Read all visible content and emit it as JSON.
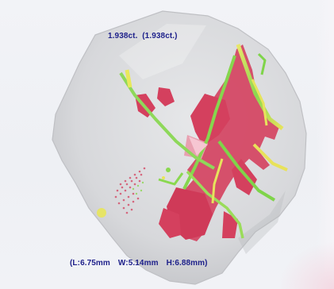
{
  "viewer": {
    "weight_text": "1.938ct.  (1.938ct.)",
    "dimensions": {
      "length": "(L:6.75mm",
      "width": "W:5.14mm",
      "height": "H:6.88mm)"
    }
  },
  "colors": {
    "background": "#eef0f4",
    "stone": "#d9dadc",
    "inclusion_red": "#d4405e",
    "inclusion_green": "#7fd44a",
    "inclusion_yellow": "#e8e85a",
    "label_text": "#1c1f8a"
  }
}
